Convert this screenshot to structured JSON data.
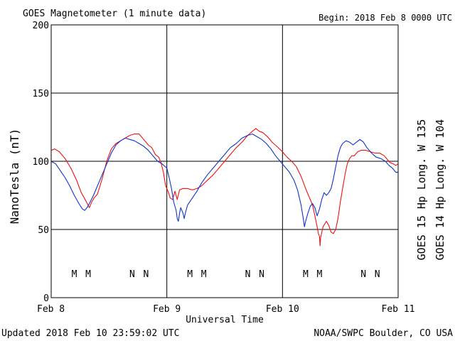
{
  "header": {
    "title": "GOES Magnetometer (1 minute data)",
    "begin": "Begin:  2018 Feb 8 0000 UTC"
  },
  "footer": {
    "updated": "Updated 2018 Feb 10 23:59:02 UTC",
    "credit": "NOAA/SWPC Boulder, CO USA"
  },
  "colors": {
    "goes15": "#ee1111",
    "goes14": "#1133cc",
    "grid": "#000000"
  },
  "chart_data": {
    "type": "line",
    "xlabel": "Universal Time",
    "ylabel": "NanoTesla (nT)",
    "x_unit": "days since 2018 Feb 8 0000 UTC",
    "xlim": [
      0,
      3
    ],
    "ylim": [
      0,
      200
    ],
    "yticks": [
      0,
      50,
      100,
      150,
      200
    ],
    "xticks": [
      {
        "x": 0,
        "label": "Feb 8"
      },
      {
        "x": 1,
        "label": "Feb 9"
      },
      {
        "x": 2,
        "label": "Feb 10"
      },
      {
        "x": 3,
        "label": "Feb 11"
      }
    ],
    "grid": true,
    "legend_placement": "right (vertical)",
    "series": [
      {
        "name": "GOES 15 Hp  Long. W 135",
        "color": "#ee1111",
        "points": [
          [
            0.0,
            108
          ],
          [
            0.03,
            109
          ],
          [
            0.07,
            107
          ],
          [
            0.12,
            102
          ],
          [
            0.17,
            95
          ],
          [
            0.22,
            86
          ],
          [
            0.26,
            77
          ],
          [
            0.3,
            71
          ],
          [
            0.33,
            66
          ],
          [
            0.35,
            70
          ],
          [
            0.37,
            73
          ],
          [
            0.4,
            76
          ],
          [
            0.44,
            87
          ],
          [
            0.48,
            100
          ],
          [
            0.52,
            109
          ],
          [
            0.56,
            113
          ],
          [
            0.6,
            115
          ],
          [
            0.64,
            117
          ],
          [
            0.68,
            119
          ],
          [
            0.72,
            120
          ],
          [
            0.76,
            120
          ],
          [
            0.8,
            116
          ],
          [
            0.84,
            112
          ],
          [
            0.87,
            110
          ],
          [
            0.9,
            105
          ],
          [
            0.93,
            103
          ],
          [
            0.95,
            99
          ],
          [
            0.97,
            92
          ],
          [
            0.99,
            82
          ],
          [
            1.01,
            78
          ],
          [
            1.03,
            73
          ],
          [
            1.05,
            72
          ],
          [
            1.07,
            78
          ],
          [
            1.09,
            72
          ],
          [
            1.11,
            79
          ],
          [
            1.14,
            80
          ],
          [
            1.18,
            80
          ],
          [
            1.22,
            79
          ],
          [
            1.26,
            80
          ],
          [
            1.3,
            82
          ],
          [
            1.35,
            86
          ],
          [
            1.4,
            90
          ],
          [
            1.45,
            95
          ],
          [
            1.5,
            100
          ],
          [
            1.55,
            105
          ],
          [
            1.6,
            110
          ],
          [
            1.65,
            114
          ],
          [
            1.7,
            119
          ],
          [
            1.74,
            122
          ],
          [
            1.77,
            124
          ],
          [
            1.8,
            122
          ],
          [
            1.83,
            121
          ],
          [
            1.87,
            118
          ],
          [
            1.91,
            114
          ],
          [
            1.95,
            111
          ],
          [
            2.0,
            107
          ],
          [
            2.04,
            103
          ],
          [
            2.08,
            100
          ],
          [
            2.12,
            96
          ],
          [
            2.16,
            89
          ],
          [
            2.2,
            80
          ],
          [
            2.23,
            74
          ],
          [
            2.26,
            68
          ],
          [
            2.28,
            60
          ],
          [
            2.3,
            52
          ],
          [
            2.31,
            47
          ],
          [
            2.32,
            45
          ],
          [
            2.325,
            38
          ],
          [
            2.33,
            44
          ],
          [
            2.35,
            52
          ],
          [
            2.38,
            56
          ],
          [
            2.4,
            53
          ],
          [
            2.42,
            48
          ],
          [
            2.44,
            47
          ],
          [
            2.46,
            50
          ],
          [
            2.48,
            58
          ],
          [
            2.5,
            70
          ],
          [
            2.52,
            80
          ],
          [
            2.54,
            90
          ],
          [
            2.56,
            98
          ],
          [
            2.58,
            102
          ],
          [
            2.6,
            104
          ],
          [
            2.62,
            104
          ],
          [
            2.65,
            107
          ],
          [
            2.68,
            108
          ],
          [
            2.72,
            108
          ],
          [
            2.76,
            107
          ],
          [
            2.8,
            106
          ],
          [
            2.84,
            106
          ],
          [
            2.88,
            104
          ],
          [
            2.91,
            101
          ],
          [
            2.93,
            99
          ],
          [
            2.96,
            98
          ],
          [
            2.98,
            97
          ],
          [
            3.0,
            98
          ]
        ]
      },
      {
        "name": "GOES 14 Hp  Long. W 104",
        "color": "#1133cc",
        "points": [
          [
            0.0,
            100
          ],
          [
            0.04,
            98
          ],
          [
            0.08,
            93
          ],
          [
            0.12,
            88
          ],
          [
            0.16,
            82
          ],
          [
            0.2,
            75
          ],
          [
            0.24,
            69
          ],
          [
            0.27,
            65
          ],
          [
            0.29,
            64
          ],
          [
            0.31,
            66
          ],
          [
            0.33,
            69
          ],
          [
            0.36,
            74
          ],
          [
            0.4,
            82
          ],
          [
            0.44,
            90
          ],
          [
            0.48,
            98
          ],
          [
            0.52,
            106
          ],
          [
            0.56,
            112
          ],
          [
            0.6,
            115
          ],
          [
            0.64,
            117
          ],
          [
            0.68,
            116
          ],
          [
            0.72,
            115
          ],
          [
            0.76,
            113
          ],
          [
            0.8,
            111
          ],
          [
            0.84,
            108
          ],
          [
            0.88,
            104
          ],
          [
            0.92,
            100
          ],
          [
            0.96,
            98
          ],
          [
            1.0,
            95
          ],
          [
            1.02,
            88
          ],
          [
            1.04,
            80
          ],
          [
            1.06,
            70
          ],
          [
            1.08,
            64
          ],
          [
            1.09,
            58
          ],
          [
            1.1,
            56
          ],
          [
            1.11,
            62
          ],
          [
            1.12,
            66
          ],
          [
            1.14,
            62
          ],
          [
            1.15,
            58
          ],
          [
            1.16,
            62
          ],
          [
            1.18,
            68
          ],
          [
            1.22,
            73
          ],
          [
            1.26,
            78
          ],
          [
            1.3,
            84
          ],
          [
            1.35,
            90
          ],
          [
            1.4,
            95
          ],
          [
            1.45,
            100
          ],
          [
            1.5,
            105
          ],
          [
            1.55,
            110
          ],
          [
            1.6,
            113
          ],
          [
            1.65,
            117
          ],
          [
            1.7,
            119
          ],
          [
            1.74,
            120
          ],
          [
            1.78,
            118
          ],
          [
            1.82,
            116
          ],
          [
            1.86,
            113
          ],
          [
            1.9,
            109
          ],
          [
            1.94,
            104
          ],
          [
            1.98,
            100
          ],
          [
            2.02,
            96
          ],
          [
            2.06,
            92
          ],
          [
            2.1,
            86
          ],
          [
            2.13,
            79
          ],
          [
            2.16,
            68
          ],
          [
            2.18,
            58
          ],
          [
            2.19,
            52
          ],
          [
            2.2,
            56
          ],
          [
            2.22,
            62
          ],
          [
            2.24,
            67
          ],
          [
            2.26,
            69
          ],
          [
            2.28,
            66
          ],
          [
            2.3,
            60
          ],
          [
            2.32,
            65
          ],
          [
            2.34,
            72
          ],
          [
            2.36,
            77
          ],
          [
            2.38,
            75
          ],
          [
            2.4,
            77
          ],
          [
            2.42,
            80
          ],
          [
            2.44,
            87
          ],
          [
            2.46,
            96
          ],
          [
            2.48,
            104
          ],
          [
            2.5,
            110
          ],
          [
            2.52,
            113
          ],
          [
            2.55,
            115
          ],
          [
            2.58,
            114
          ],
          [
            2.61,
            112
          ],
          [
            2.64,
            114
          ],
          [
            2.67,
            116
          ],
          [
            2.7,
            114
          ],
          [
            2.73,
            110
          ],
          [
            2.77,
            106
          ],
          [
            2.81,
            103
          ],
          [
            2.85,
            102
          ],
          [
            2.89,
            100
          ],
          [
            2.92,
            97
          ],
          [
            2.95,
            95
          ],
          [
            2.98,
            92
          ],
          [
            3.0,
            92
          ]
        ]
      }
    ],
    "markers": [
      {
        "x": 0.2,
        "label": "M",
        "series": "GOES 14 Hp  Long. W 104"
      },
      {
        "x": 0.32,
        "label": "M",
        "series": "GOES 15 Hp  Long. W 135"
      },
      {
        "x": 0.7,
        "label": "N",
        "series": "GOES 14 Hp  Long. W 104"
      },
      {
        "x": 0.82,
        "label": "N",
        "series": "GOES 15 Hp  Long. W 135"
      },
      {
        "x": 1.2,
        "label": "M",
        "series": "GOES 14 Hp  Long. W 104"
      },
      {
        "x": 1.32,
        "label": "M",
        "series": "GOES 15 Hp  Long. W 135"
      },
      {
        "x": 1.7,
        "label": "N",
        "series": "GOES 14 Hp  Long. W 104"
      },
      {
        "x": 1.82,
        "label": "N",
        "series": "GOES 15 Hp  Long. W 135"
      },
      {
        "x": 2.2,
        "label": "M",
        "series": "GOES 14 Hp  Long. W 104"
      },
      {
        "x": 2.32,
        "label": "M",
        "series": "GOES 15 Hp  Long. W 135"
      },
      {
        "x": 2.7,
        "label": "N",
        "series": "GOES 14 Hp  Long. W 104"
      },
      {
        "x": 2.82,
        "label": "N",
        "series": "GOES 15 Hp  Long. W 135"
      }
    ]
  }
}
